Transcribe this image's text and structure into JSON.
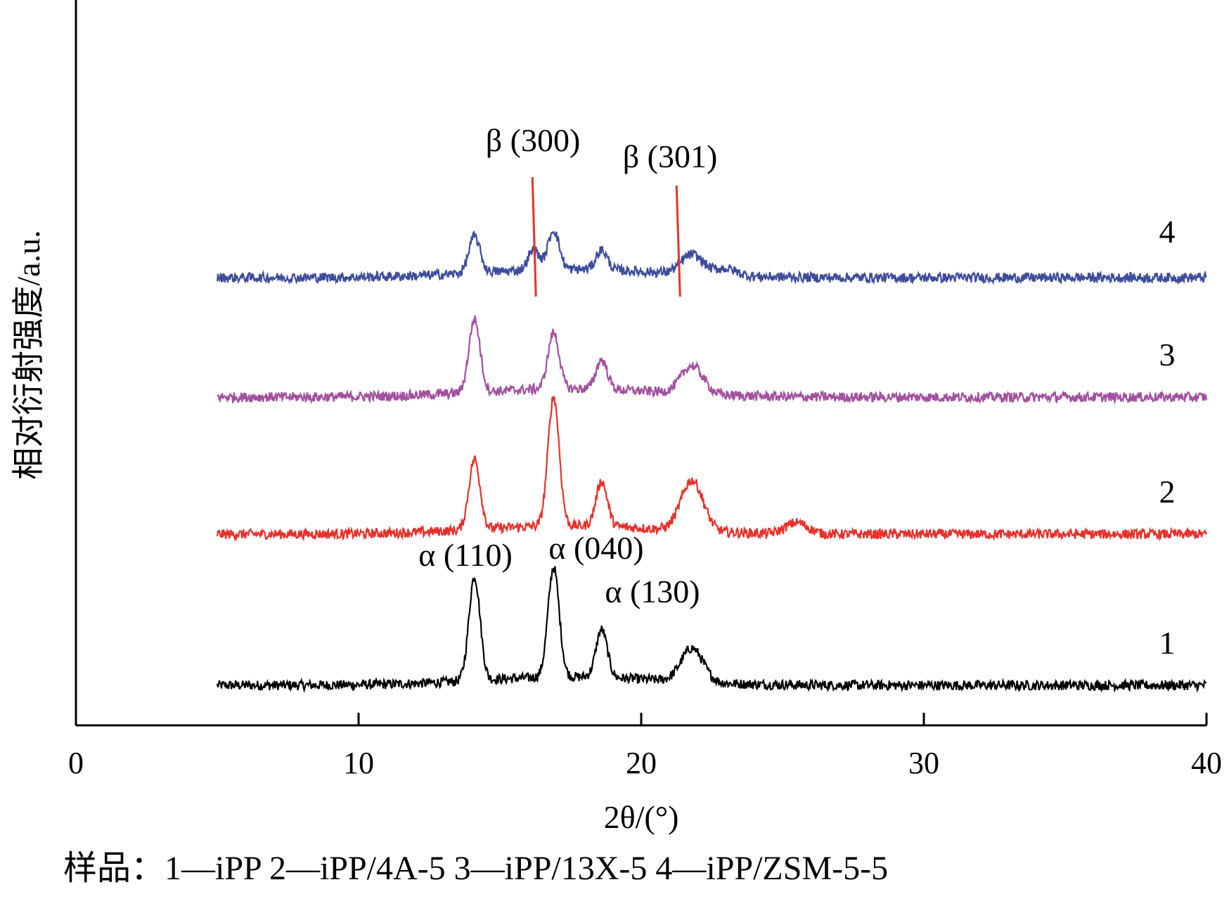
{
  "chart_data": {
    "type": "line",
    "title": "",
    "xlabel": "2θ/(°)",
    "ylabel": "相对衍射强度/a.u.",
    "xlim": [
      0,
      40
    ],
    "xticks": [
      0,
      10,
      20,
      30,
      40
    ],
    "tick_labels": [
      "0",
      "10",
      "20",
      "30",
      "40"
    ],
    "grid": false,
    "x_range": [
      5,
      40
    ],
    "series": [
      {
        "label": "1",
        "color": "#000000",
        "baseline": 0,
        "peaks": [
          {
            "x": 14.1,
            "height": 0.74
          },
          {
            "x": 16.9,
            "height": 0.78
          },
          {
            "x": 18.6,
            "height": 0.34
          },
          {
            "x": 21.8,
            "height": 0.24
          }
        ]
      },
      {
        "label": "2",
        "color": "#e8302a",
        "baseline": 0,
        "peaks": [
          {
            "x": 14.1,
            "height": 0.5
          },
          {
            "x": 16.9,
            "height": 0.92
          },
          {
            "x": 18.6,
            "height": 0.32
          },
          {
            "x": 21.8,
            "height": 0.36
          },
          {
            "x": 25.5,
            "height": 0.08
          }
        ]
      },
      {
        "label": "3",
        "color": "#a2509f",
        "baseline": 0,
        "peaks": [
          {
            "x": 14.1,
            "height": 0.52
          },
          {
            "x": 16.9,
            "height": 0.4
          },
          {
            "x": 18.6,
            "height": 0.21
          },
          {
            "x": 21.8,
            "height": 0.2
          }
        ]
      },
      {
        "label": "4",
        "color": "#3d4d9c",
        "baseline": 0,
        "peaks": [
          {
            "x": 14.1,
            "height": 0.26
          },
          {
            "x": 16.2,
            "height": 0.14
          },
          {
            "x": 16.9,
            "height": 0.28
          },
          {
            "x": 18.6,
            "height": 0.14
          },
          {
            "x": 21.8,
            "height": 0.14
          },
          {
            "x": 23.0,
            "height": 0.05
          }
        ]
      }
    ],
    "annotations": [
      {
        "text": "β (300)",
        "x": 16.2
      },
      {
        "text": "β (301)",
        "x": 21.3
      },
      {
        "text": "α (110)",
        "x": 14.1
      },
      {
        "text": "α (040)",
        "x": 16.9
      },
      {
        "text": "α (130)",
        "x": 18.6
      }
    ],
    "marker_lines": [
      {
        "x": 16.2,
        "color": "#e8302a"
      },
      {
        "x": 21.3,
        "color": "#e8302a"
      }
    ],
    "caption": "样品：1—iPP    2—iPP/4A-5    3—iPP/13X-5    4—iPP/ZSM-5-5"
  }
}
